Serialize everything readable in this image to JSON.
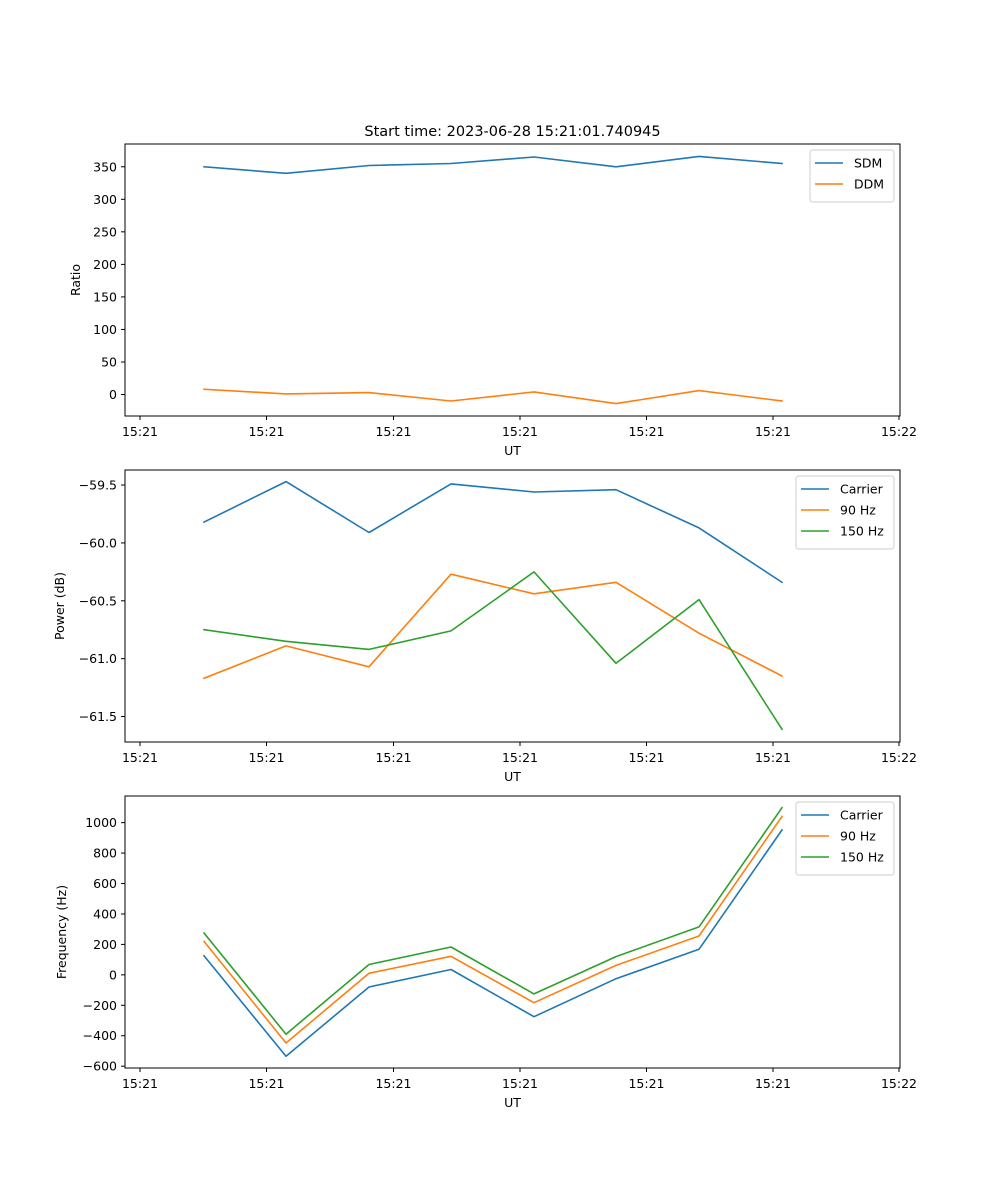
{
  "figure": {
    "title": "Start time: 2023-06-28 15:21:01.740945"
  },
  "chart_data": [
    {
      "type": "line",
      "title": "Start time: 2023-06-28 15:21:01.740945",
      "xlabel": "UT",
      "ylabel": "Ratio",
      "x_tick_labels": [
        "15:21",
        "15:21",
        "15:21",
        "15:21",
        "15:21",
        "15:21",
        "15:22"
      ],
      "yticks": [
        0,
        50,
        100,
        150,
        200,
        250,
        300,
        350
      ],
      "ylim": [
        -33,
        385
      ],
      "grid": false,
      "legend_position": "top-right",
      "series": [
        {
          "name": "SDM",
          "color": "#1f77b4",
          "values": [
            350,
            340,
            352,
            355,
            365,
            350,
            366,
            355
          ]
        },
        {
          "name": "DDM",
          "color": "#ff7f0e",
          "values": [
            8,
            1,
            3,
            -10,
            4,
            -14,
            6,
            -10
          ]
        }
      ]
    },
    {
      "type": "line",
      "title": "",
      "xlabel": "UT",
      "ylabel": "Power (dB)",
      "x_tick_labels": [
        "15:21",
        "15:21",
        "15:21",
        "15:21",
        "15:21",
        "15:21",
        "15:22"
      ],
      "yticks": [
        -61.5,
        -61.0,
        -60.5,
        -60.0,
        -59.5
      ],
      "ytick_labels": [
        "−61.5",
        "−61.0",
        "−60.5",
        "−60.0",
        "−59.5"
      ],
      "ylim": [
        -61.72,
        -59.37
      ],
      "grid": false,
      "legend_position": "top-right",
      "series": [
        {
          "name": "Carrier",
          "color": "#1f77b4",
          "values": [
            -59.82,
            -59.47,
            -59.91,
            -59.49,
            -59.56,
            -59.54,
            -59.87,
            -60.34
          ]
        },
        {
          "name": "90 Hz",
          "color": "#ff7f0e",
          "values": [
            -61.17,
            -60.89,
            -61.07,
            -60.27,
            -60.44,
            -60.34,
            -60.78,
            -61.15
          ]
        },
        {
          "name": "150 Hz",
          "color": "#2ca02c",
          "values": [
            -60.75,
            -60.85,
            -60.92,
            -60.76,
            -60.25,
            -61.04,
            -60.49,
            -61.61
          ]
        }
      ]
    },
    {
      "type": "line",
      "title": "",
      "xlabel": "UT",
      "ylabel": "Frequency (Hz)",
      "x_tick_labels": [
        "15:21",
        "15:21",
        "15:21",
        "15:21",
        "15:21",
        "15:21",
        "15:22"
      ],
      "yticks": [
        -600,
        -400,
        -200,
        0,
        200,
        400,
        600,
        800,
        1000
      ],
      "ytick_labels": [
        "−600",
        "−400",
        "−200",
        "0",
        "200",
        "400",
        "600",
        "800",
        "1000"
      ],
      "ylim": [
        -612,
        1175
      ],
      "grid": false,
      "legend_position": "top-right",
      "series": [
        {
          "name": "Carrier",
          "color": "#1f77b4",
          "values": [
            125,
            -535,
            -80,
            35,
            -275,
            -25,
            168,
            952
          ]
        },
        {
          "name": "90 Hz",
          "color": "#ff7f0e",
          "values": [
            220,
            -448,
            10,
            122,
            -183,
            62,
            255,
            1040
          ]
        },
        {
          "name": "150 Hz",
          "color": "#2ca02c",
          "values": [
            275,
            -390,
            68,
            183,
            -125,
            120,
            315,
            1098
          ]
        }
      ]
    }
  ]
}
